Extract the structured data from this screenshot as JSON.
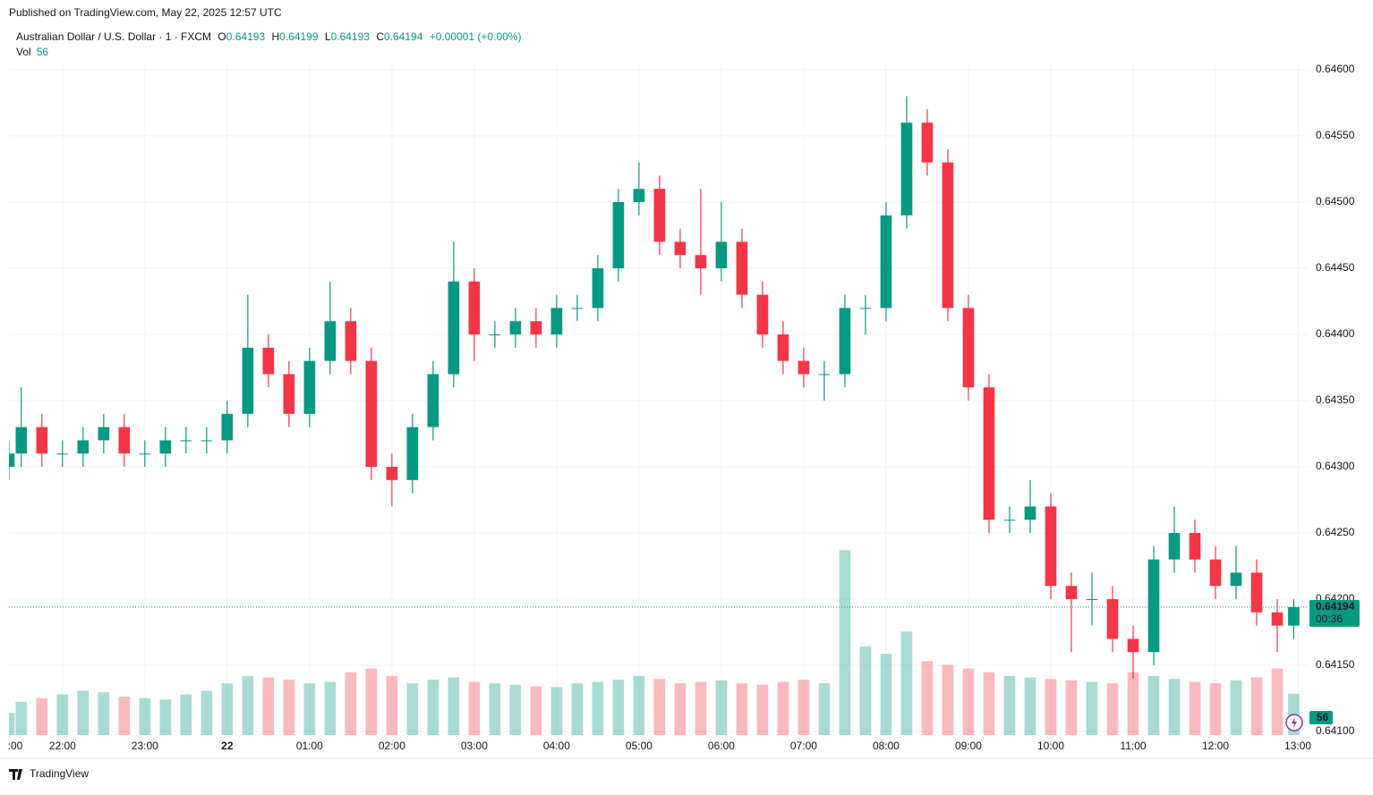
{
  "header": {
    "published": "Published on TradingView.com, May 22, 2025 12:57 UTC"
  },
  "legend": {
    "symbol": "Australian Dollar / U.S. Dollar · 1 · FXCM",
    "o_label": "O",
    "open": "0.64193",
    "h_label": "H",
    "high": "0.64199",
    "l_label": "L",
    "low": "0.64193",
    "c_label": "C",
    "close": "0.64194",
    "change": "+0.00001 (+0.00%)",
    "vol_label": "Vol",
    "vol": "56"
  },
  "footer": {
    "brand": "TradingView"
  },
  "chart_data": {
    "type": "candlestick",
    "x": [
      21.35,
      21.5,
      21.75,
      22,
      22.25,
      22.5,
      22.75,
      23,
      23.25,
      23.5,
      23.75,
      24,
      24.25,
      24.5,
      24.75,
      25,
      25.25,
      25.5,
      25.75,
      26,
      26.25,
      26.5,
      26.75,
      27,
      27.25,
      27.5,
      27.75,
      28,
      28.25,
      28.5,
      28.75,
      29,
      29.25,
      29.5,
      29.75,
      30,
      30.25,
      30.5,
      30.75,
      31,
      31.25,
      31.5,
      31.75,
      32,
      32.25,
      32.5,
      32.75,
      33,
      33.25,
      33.5,
      33.75,
      34,
      34.25,
      34.5,
      34.75,
      35,
      35.25,
      35.5,
      35.75,
      36,
      36.25,
      36.5,
      36.75,
      36.95
    ],
    "open": [
      0.643,
      0.6431,
      0.6433,
      0.6431,
      0.6431,
      0.6432,
      0.6433,
      0.6431,
      0.6431,
      0.6432,
      0.6432,
      0.6432,
      0.6434,
      0.6439,
      0.6437,
      0.6434,
      0.6438,
      0.6441,
      0.6438,
      0.643,
      0.6429,
      0.6433,
      0.6437,
      0.6444,
      0.644,
      0.644,
      0.6441,
      0.644,
      0.6442,
      0.6442,
      0.6445,
      0.645,
      0.6451,
      0.6447,
      0.6446,
      0.6445,
      0.6447,
      0.6443,
      0.644,
      0.6438,
      0.6437,
      0.6437,
      0.6442,
      0.6442,
      0.6449,
      0.6456,
      0.6453,
      0.6442,
      0.6436,
      0.6426,
      0.6426,
      0.6427,
      0.6421,
      0.642,
      0.642,
      0.6417,
      0.6416,
      0.6423,
      0.6425,
      0.6423,
      0.6421,
      0.6422,
      0.6419,
      0.6418
    ],
    "high": [
      0.6432,
      0.6436,
      0.6434,
      0.6432,
      0.6433,
      0.6434,
      0.6434,
      0.6432,
      0.6433,
      0.6433,
      0.6433,
      0.6435,
      0.6443,
      0.644,
      0.6438,
      0.6439,
      0.6444,
      0.6442,
      0.6439,
      0.6431,
      0.6434,
      0.6438,
      0.6447,
      0.6445,
      0.6441,
      0.6442,
      0.6442,
      0.6443,
      0.6443,
      0.6446,
      0.6451,
      0.6453,
      0.6452,
      0.6448,
      0.6451,
      0.645,
      0.6448,
      0.6444,
      0.6441,
      0.6439,
      0.6438,
      0.6443,
      0.6443,
      0.645,
      0.6458,
      0.6457,
      0.6454,
      0.6443,
      0.6437,
      0.6427,
      0.6429,
      0.6428,
      0.6422,
      0.6422,
      0.6421,
      0.6418,
      0.6424,
      0.6427,
      0.6426,
      0.6424,
      0.6424,
      0.6423,
      0.642,
      0.642
    ],
    "low": [
      0.6429,
      0.643,
      0.643,
      0.643,
      0.643,
      0.6431,
      0.643,
      0.643,
      0.643,
      0.6431,
      0.6431,
      0.6431,
      0.6433,
      0.6436,
      0.6433,
      0.6433,
      0.6437,
      0.6437,
      0.6429,
      0.6427,
      0.6428,
      0.6432,
      0.6436,
      0.6438,
      0.6439,
      0.6439,
      0.6439,
      0.6439,
      0.6441,
      0.6441,
      0.6444,
      0.6449,
      0.6446,
      0.6445,
      0.6443,
      0.6444,
      0.6442,
      0.6439,
      0.6437,
      0.6436,
      0.6435,
      0.6436,
      0.644,
      0.6441,
      0.6448,
      0.6452,
      0.6441,
      0.6435,
      0.6425,
      0.6425,
      0.6425,
      0.642,
      0.6416,
      0.6418,
      0.6416,
      0.6414,
      0.6415,
      0.6422,
      0.6422,
      0.642,
      0.642,
      0.6418,
      0.6416,
      0.6417
    ],
    "close": [
      0.6431,
      0.6433,
      0.6431,
      0.6431,
      0.6432,
      0.6433,
      0.6431,
      0.6431,
      0.6432,
      0.6432,
      0.6432,
      0.6434,
      0.6439,
      0.6437,
      0.6434,
      0.6438,
      0.6441,
      0.6438,
      0.643,
      0.6429,
      0.6433,
      0.6437,
      0.6444,
      0.644,
      0.644,
      0.6441,
      0.644,
      0.6442,
      0.6442,
      0.6445,
      0.645,
      0.6451,
      0.6447,
      0.6446,
      0.6445,
      0.6447,
      0.6443,
      0.644,
      0.6438,
      0.6437,
      0.6437,
      0.6442,
      0.6442,
      0.6449,
      0.6456,
      0.6453,
      0.6442,
      0.6436,
      0.6426,
      0.6426,
      0.6427,
      0.6421,
      0.642,
      0.642,
      0.6417,
      0.6416,
      0.6423,
      0.6425,
      0.6423,
      0.6421,
      0.6422,
      0.6419,
      0.6418,
      0.64194
    ],
    "volume": [
      30,
      45,
      50,
      55,
      60,
      58,
      52,
      50,
      48,
      55,
      60,
      70,
      80,
      78,
      75,
      70,
      72,
      85,
      90,
      80,
      70,
      75,
      78,
      72,
      70,
      68,
      66,
      65,
      70,
      72,
      75,
      80,
      76,
      70,
      72,
      74,
      70,
      68,
      72,
      75,
      70,
      250,
      120,
      110,
      140,
      100,
      95,
      90,
      85,
      80,
      78,
      76,
      74,
      72,
      70,
      85,
      80,
      76,
      72,
      70,
      74,
      78,
      90,
      56
    ],
    "up_color": "#089981",
    "down_color": "#f23645",
    "xlim": [
      21.35,
      37.13
    ],
    "xticks": [
      {
        "value": 21,
        "label": ":00"
      },
      {
        "value": 22,
        "label": "22:00"
      },
      {
        "value": 23,
        "label": "23:00"
      },
      {
        "value": 24,
        "label": "22"
      },
      {
        "value": 25,
        "label": "01:00"
      },
      {
        "value": 26,
        "label": "02:00"
      },
      {
        "value": 27,
        "label": "03:00"
      },
      {
        "value": 28,
        "label": "04:00"
      },
      {
        "value": 29,
        "label": "05:00"
      },
      {
        "value": 30,
        "label": "06:00"
      },
      {
        "value": 31,
        "label": "07:00"
      },
      {
        "value": 32,
        "label": "08:00"
      },
      {
        "value": 33,
        "label": "09:00"
      },
      {
        "value": 34,
        "label": "10:00"
      },
      {
        "value": 35,
        "label": "11:00"
      },
      {
        "value": 36,
        "label": "12:00"
      },
      {
        "value": 37,
        "label": "13:00"
      }
    ],
    "ylim": [
      0.641,
      0.646
    ],
    "yticks": [
      {
        "value": 0.641,
        "label": "0.64100"
      },
      {
        "value": 0.6415,
        "label": "0.64150"
      },
      {
        "value": 0.642,
        "label": "0.64200"
      },
      {
        "value": 0.6425,
        "label": "0.64250"
      },
      {
        "value": 0.643,
        "label": "0.64300"
      },
      {
        "value": 0.6435,
        "label": "0.64350"
      },
      {
        "value": 0.644,
        "label": "0.64400"
      },
      {
        "value": 0.6445,
        "label": "0.64450"
      },
      {
        "value": 0.645,
        "label": "0.64500"
      },
      {
        "value": 0.6455,
        "label": "0.64550"
      },
      {
        "value": 0.646,
        "label": "0.64600"
      }
    ],
    "y2lim": [
      0,
      900
    ],
    "grid": true,
    "last_price": 0.64194,
    "countdown": "00:36",
    "last_volume": 56
  }
}
